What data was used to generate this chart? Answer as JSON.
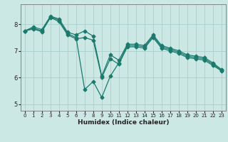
{
  "xlabel": "Humidex (Indice chaleur)",
  "background_color": "#cce8e4",
  "grid_color": "#aacfcb",
  "line_color": "#1a7a6e",
  "xlim": [
    -0.5,
    23.5
  ],
  "ylim": [
    4.75,
    8.75
  ],
  "yticks": [
    5,
    6,
    7,
    8
  ],
  "xticks": [
    0,
    1,
    2,
    3,
    4,
    5,
    6,
    7,
    8,
    9,
    10,
    11,
    12,
    13,
    14,
    15,
    16,
    17,
    18,
    19,
    20,
    21,
    22,
    23
  ],
  "line1_x": [
    0,
    1,
    2,
    3,
    4,
    5,
    6,
    7,
    8,
    9,
    10,
    11,
    12,
    13,
    14,
    15,
    16,
    17,
    18,
    19,
    20,
    21,
    22,
    23
  ],
  "line1_y": [
    7.75,
    7.9,
    7.8,
    8.3,
    8.2,
    7.7,
    7.6,
    7.75,
    7.55,
    6.05,
    6.85,
    6.65,
    7.25,
    7.25,
    7.2,
    7.6,
    7.2,
    7.1,
    7.0,
    6.85,
    6.8,
    6.75,
    6.55,
    6.3
  ],
  "line2_x": [
    0,
    1,
    2,
    3,
    4,
    5,
    6,
    7,
    8,
    9,
    10,
    11,
    12,
    13,
    14,
    15,
    16,
    17,
    18,
    19,
    20,
    21,
    22,
    23
  ],
  "line2_y": [
    7.75,
    7.85,
    7.75,
    8.28,
    8.15,
    7.65,
    7.5,
    5.55,
    5.85,
    5.25,
    6.05,
    6.55,
    7.2,
    7.2,
    7.15,
    7.55,
    7.15,
    7.05,
    6.95,
    6.8,
    6.75,
    6.7,
    6.5,
    6.28
  ],
  "line3_x": [
    0,
    1,
    2,
    3,
    4,
    5,
    6,
    7,
    8,
    9,
    10,
    11,
    12,
    13,
    14,
    15,
    16,
    17,
    18,
    19,
    20,
    21,
    22,
    23
  ],
  "line3_y": [
    7.75,
    7.82,
    7.72,
    8.25,
    8.1,
    7.6,
    7.45,
    7.5,
    7.4,
    6.0,
    6.7,
    6.5,
    7.15,
    7.15,
    7.1,
    7.5,
    7.1,
    7.0,
    6.9,
    6.75,
    6.7,
    6.65,
    6.45,
    6.25
  ]
}
